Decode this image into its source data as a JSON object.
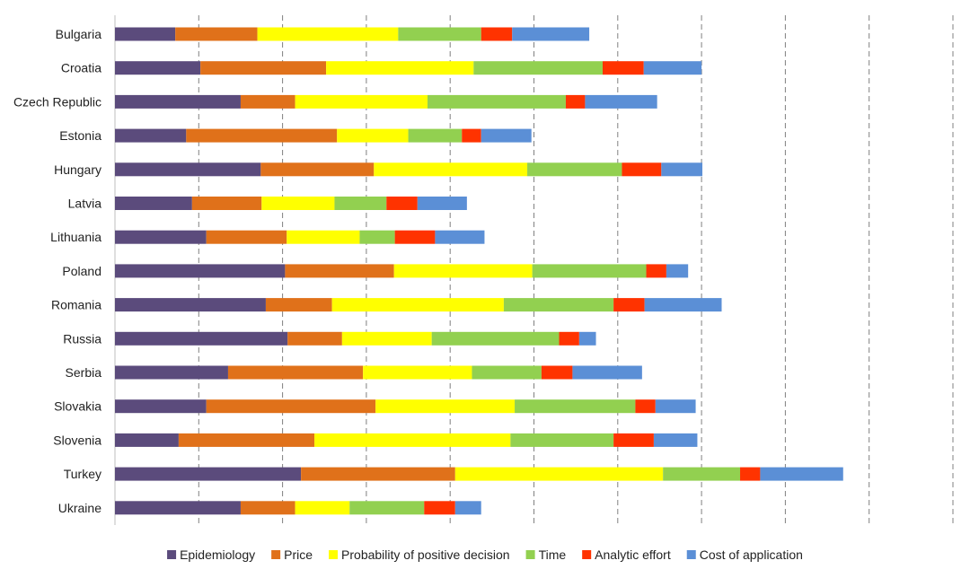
{
  "chart_data": {
    "type": "bar",
    "orientation": "horizontal",
    "stacked": true,
    "categories": [
      "Bulgaria",
      "Croatia",
      "Czech Republic",
      "Estonia",
      "Hungary",
      "Latvia",
      "Lithuania",
      "Poland",
      "Romania",
      "Russia",
      "Serbia",
      "Slovakia",
      "Slovenia",
      "Turkey",
      "Ukraine"
    ],
    "series": [
      {
        "name": "Epidemiology",
        "color": "#5b4b7c",
        "values": [
          0.72,
          1.02,
          1.5,
          0.85,
          1.74,
          0.92,
          1.09,
          2.03,
          1.8,
          2.06,
          1.35,
          1.09,
          0.76,
          2.22,
          1.5
        ]
      },
      {
        "name": "Price",
        "color": "#e0711a",
        "values": [
          0.98,
          1.5,
          0.65,
          1.8,
          1.35,
          0.83,
          0.96,
          1.3,
          0.79,
          0.65,
          1.61,
          2.02,
          1.62,
          1.84,
          0.65
        ]
      },
      {
        "name": "Probability of positive decision",
        "color": "#ffff00",
        "values": [
          1.68,
          1.76,
          1.58,
          0.85,
          1.83,
          0.87,
          0.87,
          1.65,
          2.05,
          1.07,
          1.3,
          1.66,
          2.34,
          2.48,
          0.65
        ]
      },
      {
        "name": "Time",
        "color": "#92d050",
        "values": [
          0.99,
          1.54,
          1.65,
          0.64,
          1.13,
          0.62,
          0.42,
          1.36,
          1.31,
          1.52,
          0.83,
          1.44,
          1.23,
          0.92,
          0.89
        ]
      },
      {
        "name": "Analytic effort",
        "color": "#ff3300",
        "values": [
          0.37,
          0.49,
          0.23,
          0.23,
          0.47,
          0.37,
          0.48,
          0.24,
          0.37,
          0.24,
          0.37,
          0.24,
          0.48,
          0.24,
          0.37
        ]
      },
      {
        "name": "Cost of application",
        "color": "#5b8fd6",
        "values": [
          0.92,
          0.69,
          0.86,
          0.6,
          0.49,
          0.59,
          0.59,
          0.26,
          0.92,
          0.2,
          0.83,
          0.48,
          0.52,
          0.99,
          0.31
        ]
      }
    ],
    "xlim": [
      0,
      10
    ],
    "x_tick_step": 1,
    "x_tick_labels_shown": false,
    "grid": "vertical dashed",
    "legend": "bottom"
  }
}
